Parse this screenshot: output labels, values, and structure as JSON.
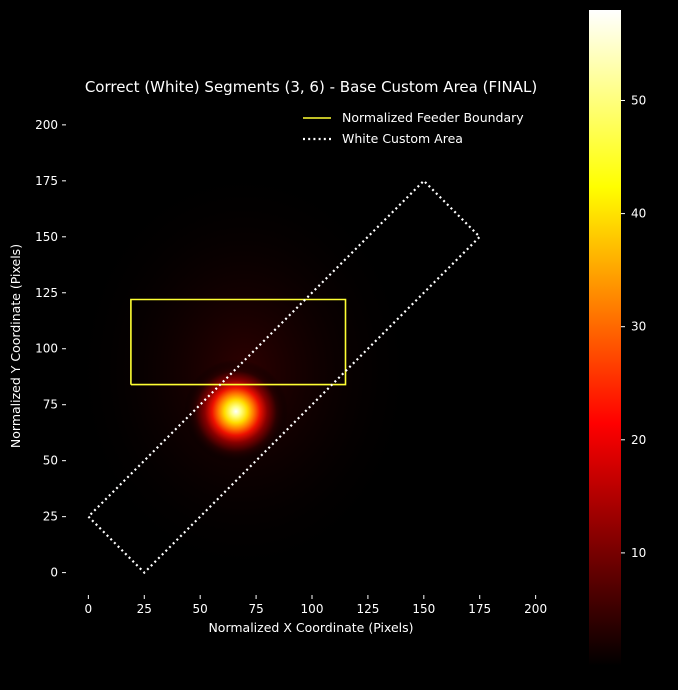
{
  "chart_data": {
    "type": "heatmap",
    "title": "Correct (White) Segments (3, 6) - Base Custom Area (FINAL)",
    "xlabel": "Normalized X Coordinate (Pixels)",
    "ylabel": "Normalized Y Coordinate (Pixels)",
    "xlim": [
      -10,
      210
    ],
    "ylim": [
      -10,
      212
    ],
    "xticks": [
      0,
      25,
      50,
      75,
      100,
      125,
      150,
      175,
      200
    ],
    "yticks": [
      0,
      25,
      50,
      75,
      100,
      125,
      150,
      175,
      200
    ],
    "colormap": "hot",
    "colorbar": {
      "range": [
        0,
        58
      ],
      "ticks": [
        10,
        20,
        30,
        40,
        50
      ]
    },
    "heat_source": {
      "x": 66,
      "y": 72,
      "peak": 58
    },
    "legend": {
      "position": "upper-right",
      "entries": [
        {
          "label": "Normalized Feeder Boundary",
          "color": "#ffff33",
          "style": "solid"
        },
        {
          "label": "White Custom Area",
          "color": "#ffffff",
          "style": "dotted"
        }
      ]
    },
    "feeder_boundary": {
      "label": "Normalized Feeder Boundary",
      "color": "#ffff33",
      "points": [
        [
          19,
          84
        ],
        [
          115,
          84
        ],
        [
          115,
          122
        ],
        [
          19,
          122
        ],
        [
          19,
          84
        ]
      ]
    },
    "custom_area": {
      "label": "White Custom Area",
      "color": "#ffffff",
      "points": [
        [
          0,
          25
        ],
        [
          25,
          0
        ],
        [
          175,
          150
        ],
        [
          150,
          175
        ],
        [
          0,
          25
        ]
      ]
    },
    "grid": false
  }
}
